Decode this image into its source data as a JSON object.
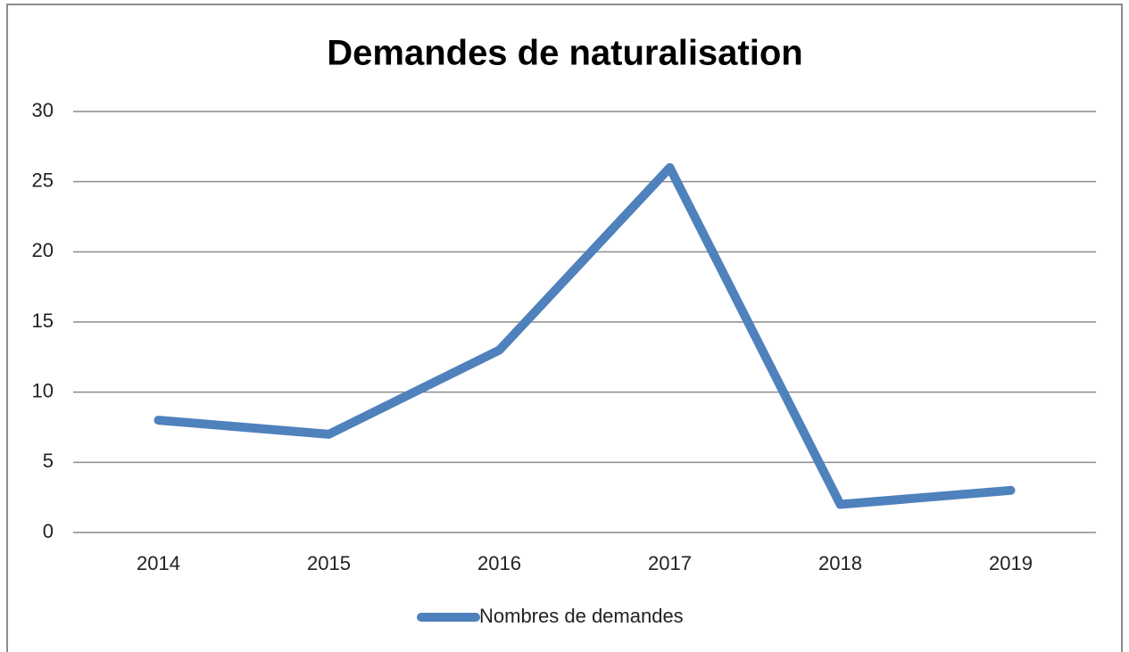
{
  "chart_data": {
    "type": "line",
    "title": "Demandes de naturalisation",
    "categories": [
      "2014",
      "2015",
      "2016",
      "2017",
      "2018",
      "2019"
    ],
    "series": [
      {
        "name": "Nombres de demandes",
        "color": "#4f81bd",
        "values": [
          8,
          7,
          13,
          26,
          2,
          3
        ]
      }
    ],
    "ylim": [
      0,
      30
    ],
    "yticks": [
      0,
      5,
      10,
      15,
      20,
      25,
      30
    ],
    "grid": true,
    "legend": "bottom"
  }
}
